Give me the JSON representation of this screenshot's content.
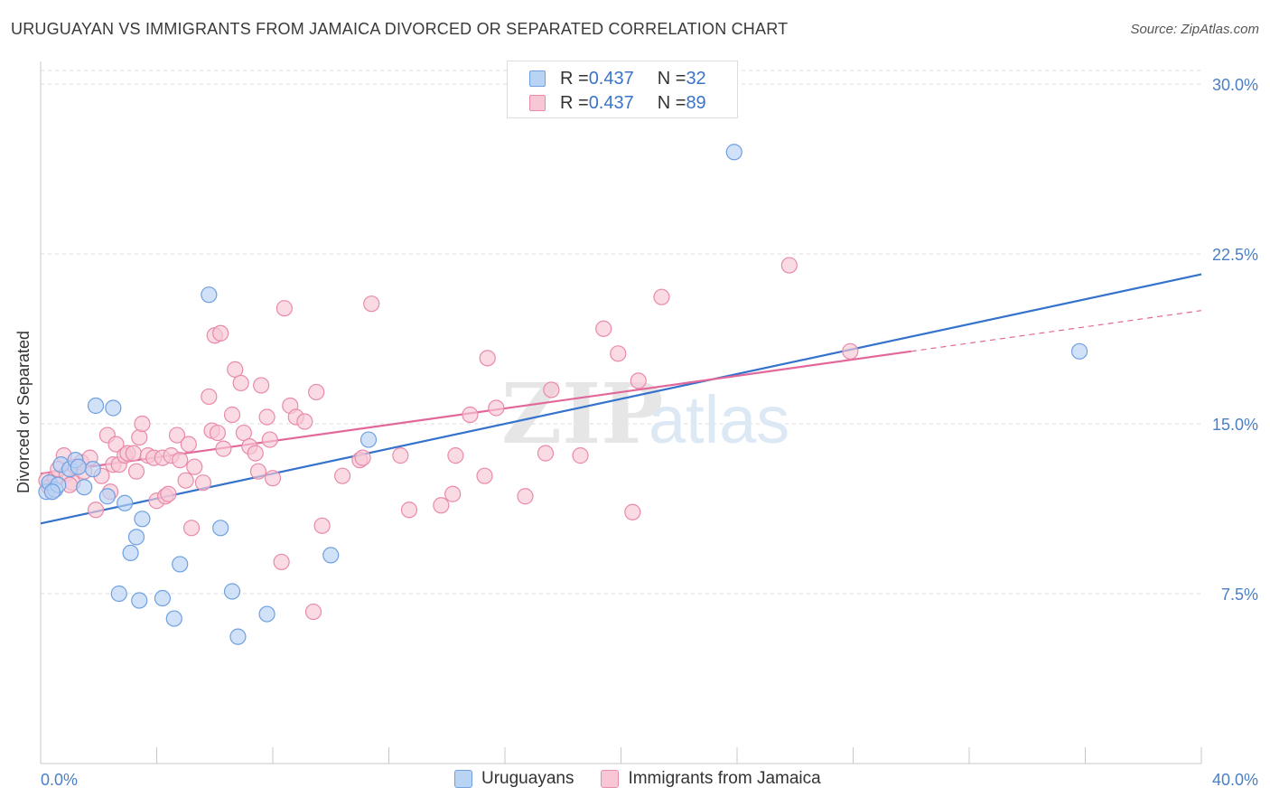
{
  "title": "URUGUAYAN VS IMMIGRANTS FROM JAMAICA DIVORCED OR SEPARATED CORRELATION CHART",
  "source": "Source: ZipAtlas.com",
  "watermark": {
    "zip": "ZIP",
    "atlas": "atlas"
  },
  "legend": [
    {
      "r_label": "R = ",
      "r_value": "0.437",
      "n_label": "N = ",
      "n_value": "32"
    },
    {
      "r_label": "R = ",
      "r_value": "0.437",
      "n_label": "N = ",
      "n_value": "89"
    }
  ],
  "bottom_legend": [
    "Uruguayans",
    "Immigrants from Jamaica"
  ],
  "colors": {
    "blue_fill": "#b8d3f4",
    "blue_stroke": "#6fa0e0",
    "blue_line": "#3472cc",
    "pink_fill": "#f8c7d6",
    "pink_stroke": "#e98aa9",
    "pink_line": "#e2679a",
    "tick_text": "#4a7fc4",
    "grid": "#dddddd"
  },
  "chart_data": {
    "type": "scatter",
    "title": "URUGUAYAN VS IMMIGRANTS FROM JAMAICA DIVORCED OR SEPARATED CORRELATION CHART",
    "xlabel": "",
    "ylabel": "Divorced or Separated",
    "xlim": [
      0,
      40
    ],
    "ylim": [
      0,
      31
    ],
    "x_tick_labels": [
      "0.0%",
      "40.0%"
    ],
    "y_ticks": [
      7.5,
      15.0,
      22.5,
      30.0
    ],
    "y_tick_labels": [
      "7.5%",
      "15.0%",
      "22.5%",
      "30.0%"
    ],
    "grid": true,
    "legend_position": "top-center",
    "series": [
      {
        "name": "Uruguayans",
        "points": [
          [
            0.2,
            12.0
          ],
          [
            0.3,
            12.4
          ],
          [
            0.5,
            12.1
          ],
          [
            0.6,
            12.3
          ],
          [
            0.7,
            13.2
          ],
          [
            1.0,
            13.0
          ],
          [
            1.2,
            13.4
          ],
          [
            1.5,
            12.2
          ],
          [
            1.8,
            13.0
          ],
          [
            1.9,
            15.8
          ],
          [
            2.3,
            11.8
          ],
          [
            2.5,
            15.7
          ],
          [
            2.9,
            11.5
          ],
          [
            3.1,
            9.3
          ],
          [
            3.3,
            10.0
          ],
          [
            3.5,
            10.8
          ],
          [
            2.7,
            7.5
          ],
          [
            3.4,
            7.2
          ],
          [
            4.2,
            7.3
          ],
          [
            4.6,
            6.4
          ],
          [
            4.8,
            8.8
          ],
          [
            5.8,
            20.7
          ],
          [
            6.2,
            10.4
          ],
          [
            6.6,
            7.6
          ],
          [
            6.8,
            5.6
          ],
          [
            7.8,
            6.6
          ],
          [
            10.0,
            9.2
          ],
          [
            11.3,
            14.3
          ],
          [
            23.9,
            27.0
          ],
          [
            35.8,
            18.2
          ],
          [
            0.4,
            12.0
          ],
          [
            1.3,
            13.1
          ]
        ],
        "trend": {
          "x": [
            0,
            40
          ],
          "y": [
            10.6,
            21.6
          ]
        }
      },
      {
        "name": "Immigrants from Jamaica",
        "points": [
          [
            0.2,
            12.5
          ],
          [
            0.3,
            12.2
          ],
          [
            0.4,
            12.0
          ],
          [
            0.5,
            12.6
          ],
          [
            0.6,
            13.0
          ],
          [
            0.8,
            13.6
          ],
          [
            0.9,
            12.8
          ],
          [
            1.1,
            12.4
          ],
          [
            1.2,
            13.1
          ],
          [
            1.4,
            13.3
          ],
          [
            1.5,
            12.9
          ],
          [
            1.7,
            13.5
          ],
          [
            1.9,
            11.2
          ],
          [
            2.1,
            12.7
          ],
          [
            2.3,
            14.5
          ],
          [
            2.4,
            12.0
          ],
          [
            2.5,
            13.2
          ],
          [
            2.6,
            14.1
          ],
          [
            2.7,
            13.2
          ],
          [
            2.9,
            13.6
          ],
          [
            3.0,
            13.7
          ],
          [
            3.2,
            13.7
          ],
          [
            3.3,
            12.9
          ],
          [
            3.4,
            14.4
          ],
          [
            3.5,
            15.0
          ],
          [
            3.7,
            13.6
          ],
          [
            3.9,
            13.5
          ],
          [
            4.0,
            11.6
          ],
          [
            4.2,
            13.5
          ],
          [
            4.3,
            11.8
          ],
          [
            4.4,
            11.9
          ],
          [
            4.5,
            13.6
          ],
          [
            4.7,
            14.5
          ],
          [
            4.8,
            13.4
          ],
          [
            5.0,
            12.5
          ],
          [
            5.1,
            14.1
          ],
          [
            5.2,
            10.4
          ],
          [
            5.3,
            13.1
          ],
          [
            5.6,
            12.4
          ],
          [
            5.8,
            16.2
          ],
          [
            5.9,
            14.7
          ],
          [
            6.0,
            18.9
          ],
          [
            6.2,
            19.0
          ],
          [
            6.3,
            13.9
          ],
          [
            6.6,
            15.4
          ],
          [
            6.7,
            17.4
          ],
          [
            6.9,
            16.8
          ],
          [
            7.0,
            14.6
          ],
          [
            7.2,
            14.0
          ],
          [
            7.4,
            13.7
          ],
          [
            7.5,
            12.9
          ],
          [
            7.6,
            16.7
          ],
          [
            7.8,
            15.3
          ],
          [
            7.9,
            14.3
          ],
          [
            8.0,
            12.6
          ],
          [
            8.4,
            20.1
          ],
          [
            8.6,
            15.8
          ],
          [
            8.8,
            15.3
          ],
          [
            9.1,
            15.1
          ],
          [
            9.5,
            16.4
          ],
          [
            9.7,
            10.5
          ],
          [
            10.4,
            12.7
          ],
          [
            11.0,
            13.4
          ],
          [
            11.4,
            20.3
          ],
          [
            12.4,
            13.6
          ],
          [
            12.7,
            11.2
          ],
          [
            13.8,
            11.4
          ],
          [
            14.2,
            11.9
          ],
          [
            14.3,
            13.6
          ],
          [
            14.8,
            15.4
          ],
          [
            15.3,
            12.7
          ],
          [
            15.4,
            17.9
          ],
          [
            15.7,
            15.7
          ],
          [
            16.7,
            11.8
          ],
          [
            17.4,
            13.7
          ],
          [
            17.6,
            16.5
          ],
          [
            18.6,
            13.6
          ],
          [
            19.4,
            19.2
          ],
          [
            19.9,
            18.1
          ],
          [
            20.4,
            11.1
          ],
          [
            20.6,
            16.9
          ],
          [
            21.4,
            20.6
          ],
          [
            25.8,
            22.0
          ],
          [
            27.9,
            18.2
          ],
          [
            8.3,
            8.9
          ],
          [
            9.4,
            6.7
          ],
          [
            1.0,
            12.3
          ],
          [
            6.1,
            14.6
          ],
          [
            11.1,
            13.5
          ]
        ],
        "trend": {
          "x": [
            0,
            30.0
          ],
          "y": [
            12.8,
            18.2
          ]
        },
        "trend_extrapolated": {
          "x": [
            30.0,
            40
          ],
          "y": [
            18.2,
            20.0
          ]
        }
      }
    ]
  }
}
